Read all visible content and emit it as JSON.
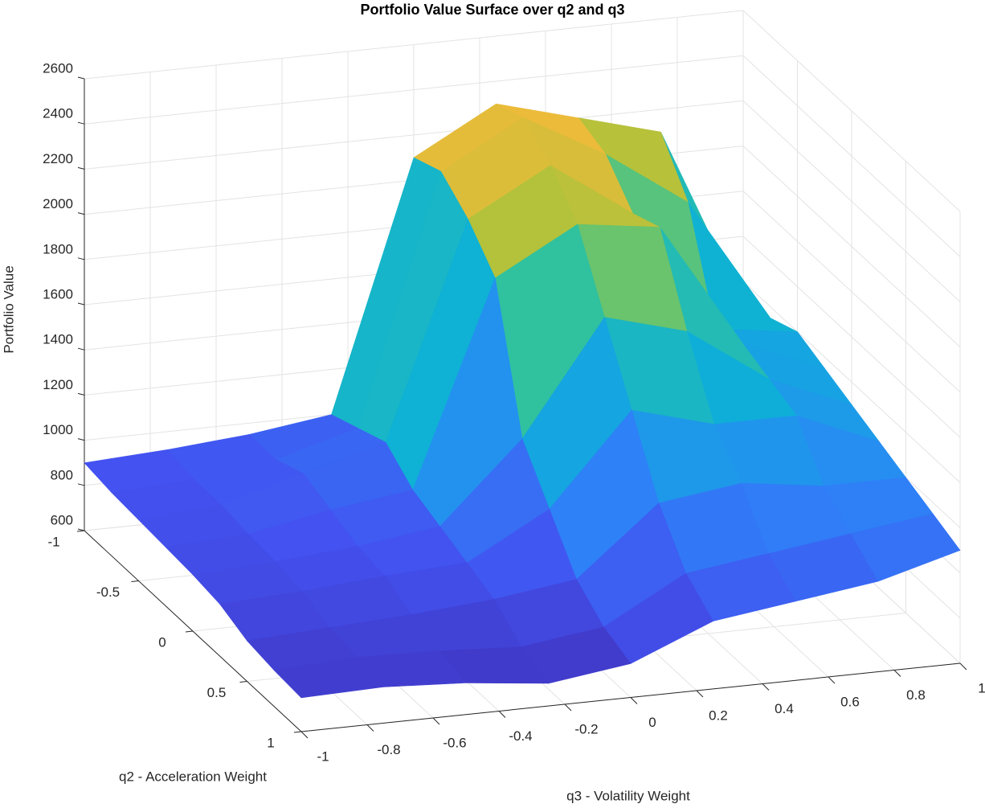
{
  "chart_data": {
    "type": "surface",
    "title": "Portfolio Value Surface over q2 and q3",
    "xlabel": "q3 - Volatility Weight",
    "ylabel": "q2 - Acceleration Weight",
    "zlabel": "Portfolio Value",
    "x": [
      -1,
      -0.75,
      -0.5,
      -0.25,
      0,
      0.25,
      0.5,
      0.75,
      1
    ],
    "y": [
      -1,
      -0.75,
      -0.5,
      -0.25,
      0,
      0.25,
      0.5,
      0.75,
      1
    ],
    "z": [
      [
        900,
        920,
        950,
        1000,
        2100,
        2300,
        2200,
        2100,
        1300
      ],
      [
        880,
        900,
        950,
        1050,
        2150,
        2350,
        2150,
        1900,
        1350
      ],
      [
        870,
        900,
        1000,
        1100,
        2050,
        2250,
        2000,
        1450,
        1400
      ],
      [
        860,
        880,
        950,
        1000,
        1900,
        2100,
        2050,
        1500,
        1350
      ],
      [
        850,
        870,
        900,
        950,
        1300,
        1800,
        1700,
        1450,
        1300
      ],
      [
        830,
        850,
        880,
        900,
        1100,
        1500,
        1400,
        1400,
        1250
      ],
      [
        780,
        800,
        820,
        850,
        900,
        1200,
        1250,
        1200,
        1200
      ],
      [
        760,
        780,
        770,
        750,
        800,
        1000,
        1050,
        1100,
        1150
      ],
      [
        750,
        760,
        740,
        700,
        750,
        900,
        950,
        1000,
        1100
      ]
    ],
    "xlim": [
      -1,
      1
    ],
    "ylim": [
      -1,
      1
    ],
    "zlim": [
      600,
      2600
    ],
    "xticks": [
      -1,
      -0.8,
      -0.6,
      -0.4,
      -0.2,
      0,
      0.2,
      0.4,
      0.6,
      0.8,
      1
    ],
    "yticks": [
      -1,
      -0.5,
      0,
      0.5,
      1
    ],
    "zticks": [
      600,
      800,
      1000,
      1200,
      1400,
      1600,
      1800,
      2000,
      2200,
      2400,
      2600
    ],
    "colormap": "parula",
    "grid": true
  }
}
